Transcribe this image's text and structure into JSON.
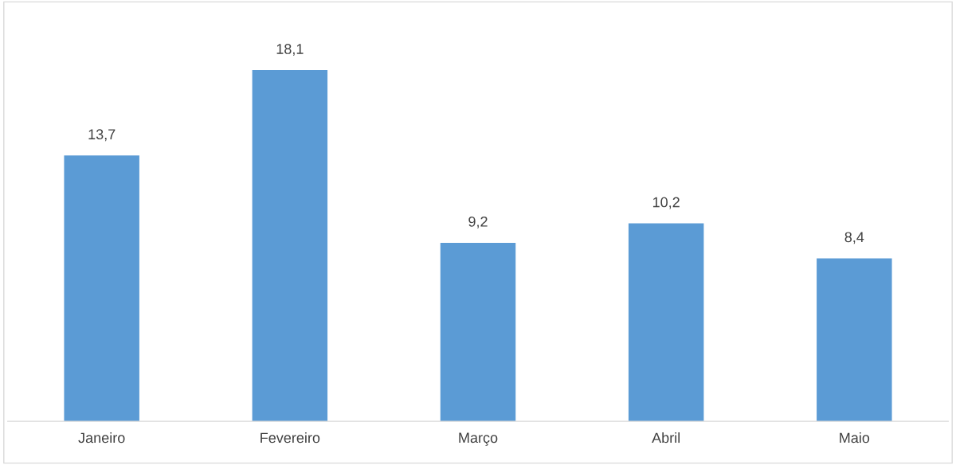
{
  "chart_data": {
    "type": "bar",
    "categories": [
      "Janeiro",
      "Fevereiro",
      "Março",
      "Abril",
      "Maio"
    ],
    "values": [
      13.7,
      18.1,
      9.2,
      10.2,
      8.4
    ],
    "value_labels": [
      "13,7",
      "18,1",
      "9,2",
      "10,2",
      "8,4"
    ],
    "color": "#5b9bd5",
    "grid": false,
    "legend": false,
    "tick_labels": "x"
  }
}
